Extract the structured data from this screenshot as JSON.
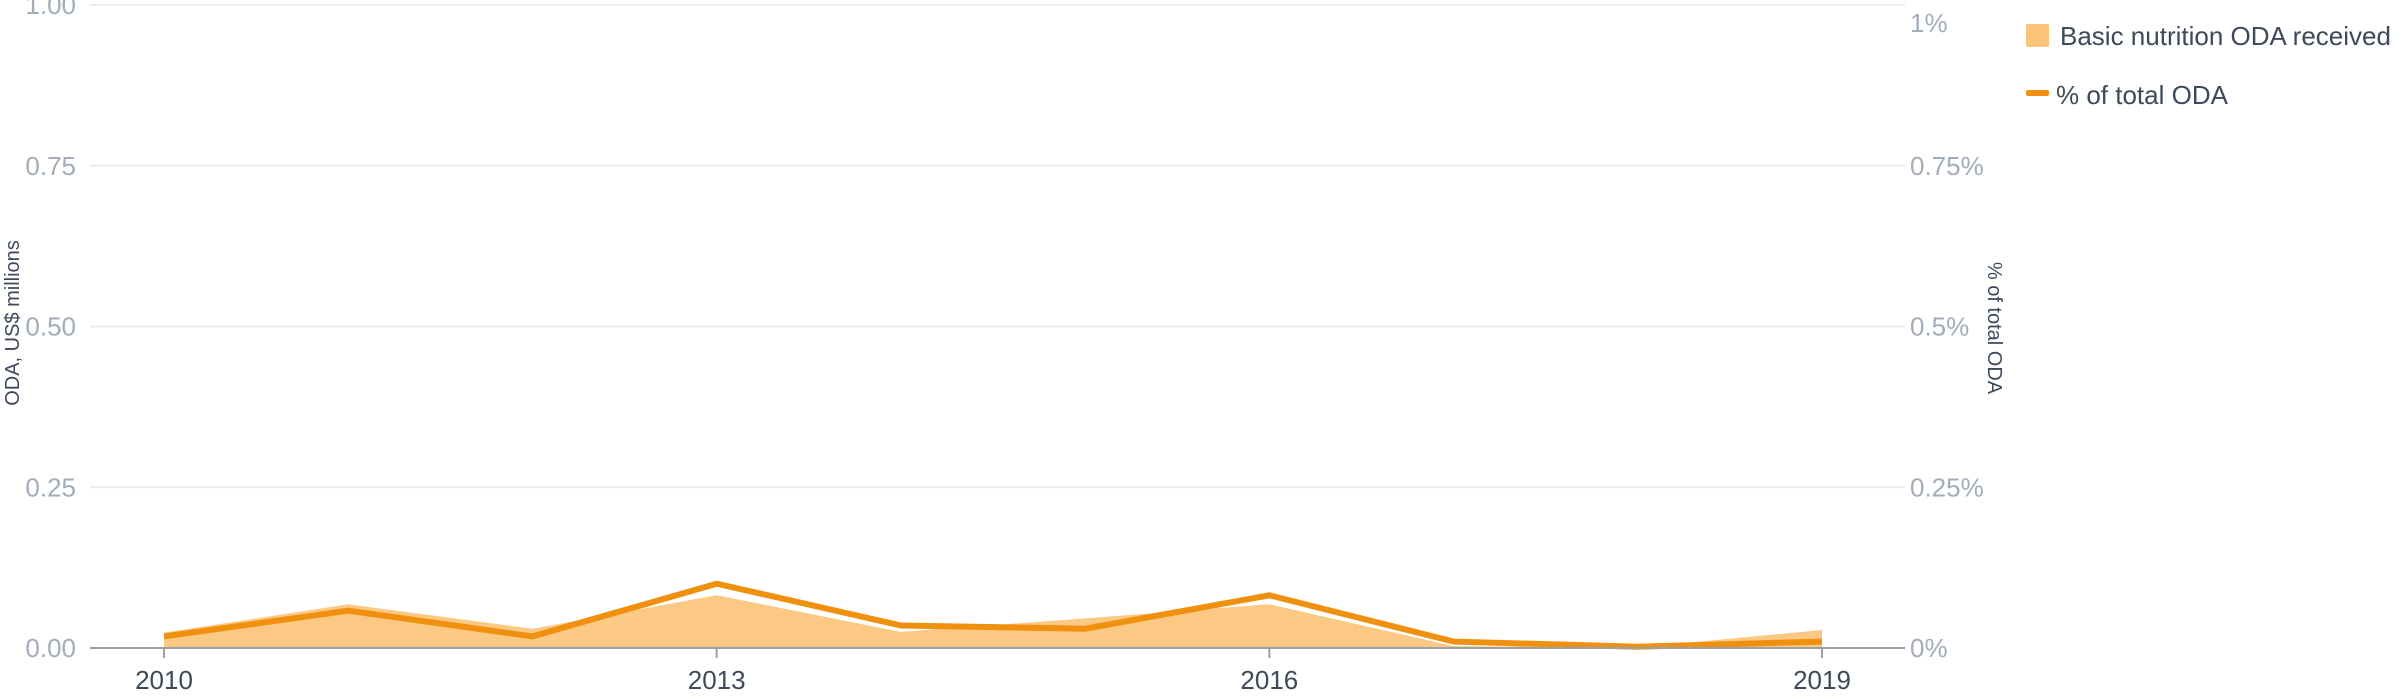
{
  "chart_data": {
    "type": "area",
    "x_ticks": [
      "2010",
      "2013",
      "2016",
      "2019"
    ],
    "x": [
      2010,
      2011,
      2012,
      2013,
      2014,
      2015,
      2016,
      2017,
      2018,
      2019
    ],
    "series": [
      {
        "name": "Basic nutrition ODA received",
        "type": "area",
        "axis": "left",
        "color": "#fcc47a",
        "values": [
          0.024,
          0.068,
          0.03,
          0.082,
          0.025,
          0.046,
          0.068,
          0.003,
          0.001,
          0.028
        ]
      },
      {
        "name": "% of total ODA",
        "type": "line",
        "axis": "right",
        "color": "#f0900f",
        "values": [
          0.018,
          0.058,
          0.018,
          0.1,
          0.035,
          0.03,
          0.082,
          0.01,
          0.002,
          0.01
        ]
      }
    ],
    "y_left": {
      "label": "ODA, US$ millions",
      "ylim": [
        0,
        1
      ],
      "ticks": [
        "0.00",
        "0.25",
        "0.50",
        "0.75",
        "1.00"
      ]
    },
    "y_right": {
      "label": "% of total ODA",
      "ylim": [
        0,
        1
      ],
      "ticks": [
        "0%",
        "0.25%",
        "0.5%",
        "0.75%",
        "1%"
      ]
    },
    "grid": true,
    "legend_position": "top-right"
  }
}
